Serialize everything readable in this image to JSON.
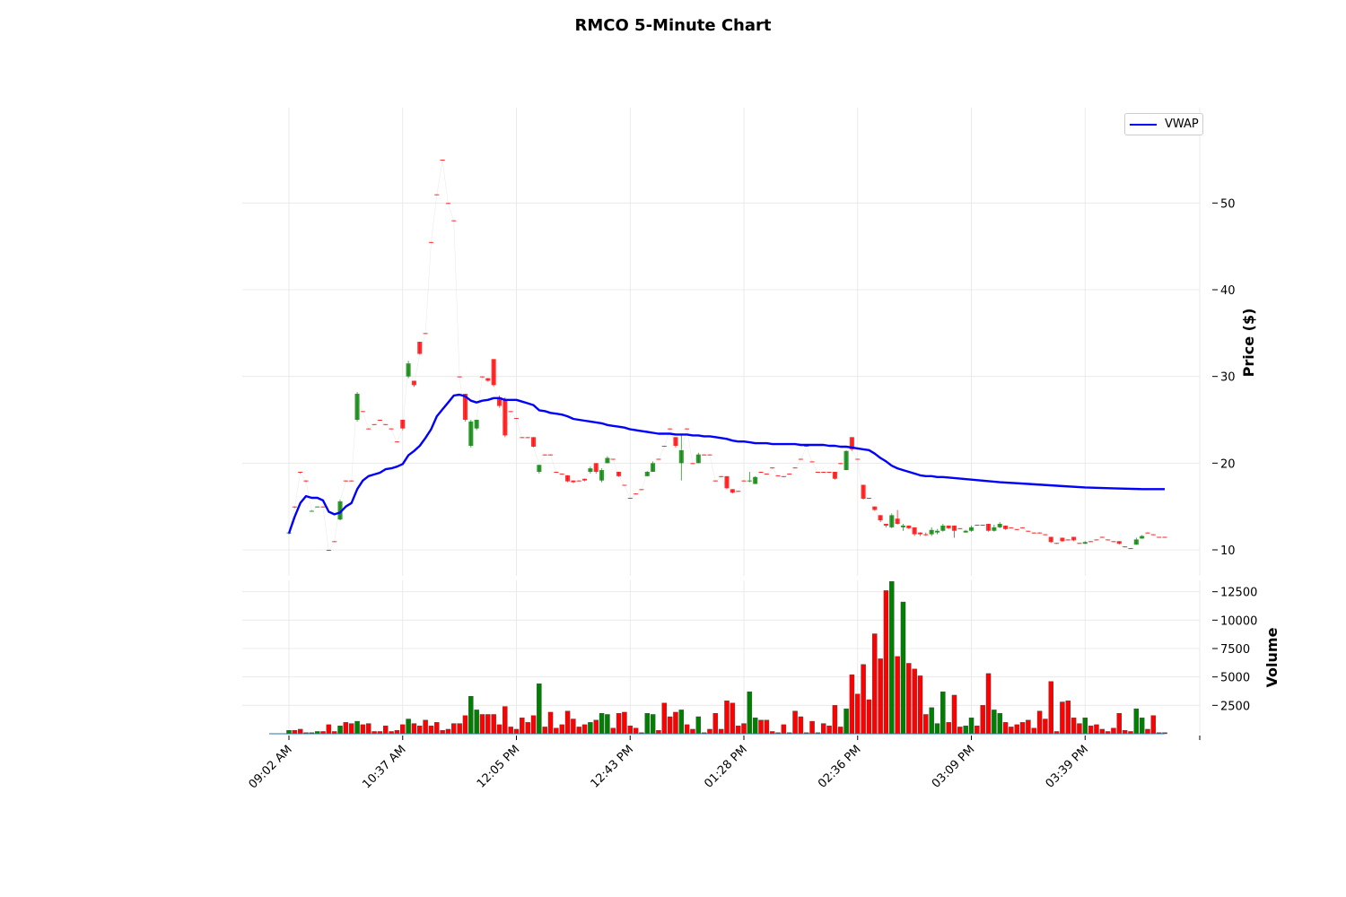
{
  "chart_data": {
    "title": "RMCO 5-Minute Chart",
    "type": "candlestick",
    "price_panel": {
      "ylabel": "Price ($)",
      "yticks": [
        10,
        20,
        30,
        40,
        50
      ],
      "ylim": [
        7,
        61
      ],
      "grid": true
    },
    "volume_panel": {
      "ylabel": "Volume",
      "yticks": [
        2500,
        5000,
        7500,
        10000,
        12500
      ],
      "ylim": [
        0,
        13500
      ],
      "grid": true
    },
    "legend": {
      "position": "top-right",
      "entries": [
        {
          "name": "VWAP",
          "color": "#0000ff"
        }
      ]
    },
    "xticks": [
      {
        "index": 0,
        "label": "09:02 AM"
      },
      {
        "index": 20,
        "label": "10:37 AM"
      },
      {
        "index": 40,
        "label": "12:05 PM"
      },
      {
        "index": 60,
        "label": "12:43 PM"
      },
      {
        "index": 80,
        "label": "01:28 PM"
      },
      {
        "index": 100,
        "label": "02:36 PM"
      },
      {
        "index": 120,
        "label": "03:09 PM"
      },
      {
        "index": 140,
        "label": "03:39 PM"
      }
    ],
    "colors": {
      "up": "#008000",
      "down": "#ff0000",
      "vwap": "#0000ff"
    },
    "candles": [
      [
        12.0,
        12.0,
        11.8,
        12.0,
        300
      ],
      [
        15.0,
        15.0,
        14.8,
        14.9,
        300
      ],
      [
        19.0,
        19.0,
        18.8,
        18.9,
        400
      ],
      [
        18.0,
        18.0,
        17.8,
        17.9,
        100
      ],
      [
        14.5,
        14.6,
        14.4,
        14.5,
        100
      ],
      [
        15.0,
        15.0,
        14.9,
        15.0,
        200
      ],
      [
        15.0,
        15.0,
        14.9,
        14.9,
        200
      ],
      [
        10.0,
        10.0,
        9.9,
        9.9,
        800
      ],
      [
        11.0,
        11.0,
        10.9,
        10.9,
        200
      ],
      [
        13.5,
        15.8,
        13.4,
        15.6,
        700
      ],
      [
        18.0,
        18.0,
        17.9,
        17.9,
        1000
      ],
      [
        18.0,
        18.0,
        17.9,
        17.9,
        900
      ],
      [
        25.0,
        28.2,
        24.8,
        28.0,
        1100
      ],
      [
        26.0,
        26.0,
        25.9,
        25.9,
        800
      ],
      [
        24.0,
        24.0,
        23.9,
        23.9,
        900
      ],
      [
        24.5,
        24.5,
        24.4,
        24.4,
        200
      ],
      [
        25.0,
        25.0,
        24.9,
        24.9,
        200
      ],
      [
        24.5,
        24.5,
        24.4,
        24.4,
        700
      ],
      [
        24.0,
        24.0,
        23.9,
        23.9,
        200
      ],
      [
        22.5,
        22.5,
        22.4,
        22.4,
        300
      ],
      [
        25.0,
        25.0,
        23.8,
        24.0,
        800
      ],
      [
        30.0,
        31.8,
        29.8,
        31.5,
        1300
      ],
      [
        29.5,
        29.5,
        28.8,
        29.0,
        900
      ],
      [
        34.0,
        34.0,
        32.5,
        32.6,
        700
      ],
      [
        35.0,
        35.0,
        34.9,
        34.9,
        1200
      ],
      [
        45.5,
        45.5,
        45.4,
        45.4,
        700
      ],
      [
        51.0,
        51.0,
        50.9,
        50.9,
        1000
      ],
      [
        55.0,
        55.0,
        54.9,
        54.9,
        300
      ],
      [
        50.0,
        50.0,
        49.9,
        49.9,
        400
      ],
      [
        48.0,
        48.0,
        47.9,
        47.9,
        900
      ],
      [
        30.0,
        30.0,
        29.9,
        29.9,
        900
      ],
      [
        28.0,
        28.0,
        24.8,
        25.0,
        1600
      ],
      [
        22.0,
        25.0,
        21.8,
        24.8,
        3300
      ],
      [
        24.0,
        25.0,
        23.8,
        25.0,
        2100
      ],
      [
        30.0,
        30.0,
        29.9,
        29.9,
        1700
      ],
      [
        29.8,
        29.8,
        29.4,
        29.5,
        1700
      ],
      [
        32.0,
        32.0,
        28.8,
        29.0,
        1700
      ],
      [
        27.6,
        27.8,
        26.4,
        26.6,
        800
      ],
      [
        27.4,
        27.6,
        23.0,
        23.2,
        2400
      ],
      [
        26.0,
        26.0,
        25.9,
        25.9,
        600
      ],
      [
        25.2,
        25.2,
        25.1,
        25.1,
        400
      ],
      [
        23.0,
        23.0,
        22.9,
        22.9,
        1400
      ],
      [
        23.0,
        23.0,
        22.9,
        22.9,
        1000
      ],
      [
        23.0,
        23.0,
        21.8,
        21.9,
        1600
      ],
      [
        19.0,
        19.8,
        18.8,
        19.8,
        4400
      ],
      [
        21.0,
        21.0,
        20.9,
        20.9,
        600
      ],
      [
        21.0,
        21.0,
        20.9,
        20.9,
        1900
      ],
      [
        19.0,
        19.0,
        18.9,
        18.9,
        500
      ],
      [
        18.8,
        18.8,
        18.7,
        18.7,
        800
      ],
      [
        18.6,
        18.6,
        17.8,
        17.9,
        2000
      ],
      [
        18.0,
        18.0,
        17.7,
        17.8,
        1300
      ],
      [
        18.0,
        18.0,
        17.9,
        17.9,
        600
      ],
      [
        18.2,
        18.2,
        17.9,
        18.0,
        800
      ],
      [
        19.0,
        19.6,
        18.8,
        19.4,
        1000
      ],
      [
        20.0,
        20.0,
        18.8,
        19.0,
        1200
      ],
      [
        18.0,
        19.4,
        17.8,
        19.2,
        1800
      ],
      [
        20.0,
        20.8,
        20.0,
        20.6,
        1700
      ],
      [
        20.5,
        20.5,
        20.4,
        20.4,
        500
      ],
      [
        19.0,
        19.0,
        18.4,
        18.5,
        1800
      ],
      [
        17.5,
        17.5,
        17.4,
        17.4,
        1900
      ],
      [
        16.0,
        16.0,
        15.9,
        15.9,
        700
      ],
      [
        16.5,
        16.5,
        16.4,
        16.4,
        500
      ],
      [
        17.0,
        17.0,
        16.9,
        16.9,
        100
      ],
      [
        18.5,
        19.1,
        18.5,
        19.0,
        1800
      ],
      [
        19.0,
        20.2,
        19.0,
        20.0,
        1700
      ],
      [
        20.5,
        20.5,
        20.4,
        20.4,
        300
      ],
      [
        22.0,
        22.0,
        21.9,
        21.9,
        2700
      ],
      [
        24.0,
        24.0,
        23.9,
        23.9,
        1500
      ],
      [
        23.0,
        23.0,
        21.8,
        22.0,
        1900
      ],
      [
        20.0,
        23.2,
        18.0,
        21.5,
        2100
      ],
      [
        24.0,
        24.0,
        23.9,
        23.9,
        800
      ],
      [
        20.0,
        20.0,
        19.9,
        19.9,
        400
      ],
      [
        20.0,
        21.2,
        20.0,
        21.0,
        1500
      ],
      [
        21.0,
        21.0,
        20.9,
        20.9,
        100
      ],
      [
        21.0,
        21.0,
        20.9,
        20.9,
        400
      ],
      [
        18.0,
        18.0,
        17.9,
        17.9,
        1800
      ],
      [
        18.5,
        18.5,
        18.4,
        18.4,
        400
      ],
      [
        18.5,
        18.5,
        17.0,
        17.1,
        2900
      ],
      [
        17.0,
        17.0,
        16.5,
        16.6,
        2700
      ],
      [
        16.8,
        16.8,
        16.7,
        16.7,
        700
      ],
      [
        18.0,
        18.0,
        17.9,
        17.9,
        900
      ],
      [
        18.0,
        19.0,
        17.8,
        18.0,
        3700
      ],
      [
        17.6,
        18.5,
        17.6,
        18.4,
        1400
      ],
      [
        19.0,
        19.0,
        18.9,
        18.9,
        1200
      ],
      [
        18.8,
        18.8,
        18.7,
        18.7,
        1200
      ],
      [
        19.5,
        19.5,
        19.4,
        19.4,
        200
      ],
      [
        18.6,
        18.6,
        18.5,
        18.5,
        100
      ],
      [
        18.5,
        18.5,
        18.4,
        18.4,
        800
      ],
      [
        18.8,
        18.8,
        18.7,
        18.7,
        100
      ],
      [
        19.5,
        19.5,
        19.4,
        19.4,
        2000
      ],
      [
        20.5,
        20.5,
        20.4,
        20.4,
        1500
      ],
      [
        22.0,
        22.0,
        21.9,
        21.9,
        100
      ],
      [
        20.2,
        20.2,
        20.1,
        20.1,
        1100
      ],
      [
        19.0,
        19.0,
        18.9,
        18.9,
        100
      ],
      [
        19.0,
        19.0,
        18.9,
        18.9,
        900
      ],
      [
        19.0,
        19.0,
        18.9,
        18.9,
        700
      ],
      [
        19.0,
        19.0,
        18.1,
        18.2,
        2500
      ],
      [
        20.0,
        20.0,
        19.9,
        19.9,
        600
      ],
      [
        19.2,
        21.5,
        19.2,
        21.4,
        2200
      ],
      [
        23.0,
        23.0,
        21.4,
        21.6,
        5200
      ],
      [
        20.5,
        20.5,
        20.4,
        20.4,
        3500
      ],
      [
        17.5,
        17.5,
        15.8,
        15.9,
        6100
      ],
      [
        16.0,
        16.0,
        15.9,
        15.9,
        3000
      ],
      [
        15.0,
        15.0,
        14.5,
        14.6,
        8800
      ],
      [
        14.0,
        14.0,
        13.2,
        13.4,
        6600
      ],
      [
        13.0,
        13.0,
        12.6,
        12.8,
        12600
      ],
      [
        12.6,
        14.2,
        12.5,
        14.0,
        13400
      ],
      [
        13.6,
        14.6,
        12.9,
        13.0,
        6800
      ],
      [
        12.6,
        13.0,
        12.2,
        12.8,
        11600
      ],
      [
        12.8,
        12.8,
        12.4,
        12.5,
        6200
      ],
      [
        12.6,
        12.6,
        11.6,
        11.8,
        5700
      ],
      [
        12.0,
        12.0,
        11.6,
        11.8,
        5100
      ],
      [
        11.8,
        12.0,
        11.6,
        11.7,
        1700
      ],
      [
        11.8,
        12.6,
        11.6,
        12.3,
        2300
      ],
      [
        12.0,
        12.4,
        11.8,
        12.2,
        900
      ],
      [
        12.2,
        13.0,
        12.1,
        12.8,
        3700
      ],
      [
        12.8,
        12.8,
        12.4,
        12.5,
        1000
      ],
      [
        12.8,
        12.8,
        11.4,
        12.2,
        3400
      ],
      [
        12.5,
        12.5,
        12.4,
        12.4,
        600
      ],
      [
        12.0,
        12.3,
        12.0,
        12.2,
        700
      ],
      [
        12.2,
        12.8,
        12.1,
        12.6,
        1400
      ],
      [
        12.9,
        12.9,
        12.8,
        12.8,
        700
      ],
      [
        12.9,
        12.9,
        12.8,
        12.8,
        2500
      ],
      [
        13.0,
        13.0,
        12.1,
        12.2,
        5300
      ],
      [
        12.2,
        12.9,
        12.1,
        12.6,
        2100
      ],
      [
        12.6,
        13.2,
        12.5,
        13.0,
        1800
      ],
      [
        12.8,
        12.8,
        12.3,
        12.4,
        1000
      ],
      [
        12.6,
        12.6,
        12.5,
        12.5,
        600
      ],
      [
        12.4,
        12.4,
        12.3,
        12.3,
        800
      ],
      [
        12.6,
        12.6,
        12.5,
        12.5,
        1000
      ],
      [
        12.2,
        12.2,
        12.1,
        12.1,
        1200
      ],
      [
        12.0,
        12.0,
        11.9,
        11.9,
        500
      ],
      [
        12.0,
        12.0,
        11.9,
        11.9,
        2000
      ],
      [
        11.8,
        11.8,
        11.7,
        11.7,
        1300
      ],
      [
        11.5,
        11.5,
        10.8,
        10.9,
        4600
      ],
      [
        10.8,
        10.8,
        10.7,
        10.7,
        200
      ],
      [
        11.4,
        11.4,
        10.9,
        11.0,
        2800
      ],
      [
        11.2,
        11.2,
        11.1,
        11.1,
        2900
      ],
      [
        11.5,
        11.5,
        11.0,
        11.1,
        1400
      ],
      [
        10.8,
        10.8,
        10.7,
        10.7,
        900
      ],
      [
        10.7,
        11.0,
        10.7,
        10.9,
        1400
      ],
      [
        11.0,
        11.0,
        10.9,
        10.9,
        700
      ],
      [
        11.2,
        11.2,
        11.1,
        11.1,
        800
      ],
      [
        11.5,
        11.5,
        11.4,
        11.4,
        400
      ],
      [
        11.2,
        11.2,
        11.1,
        11.1,
        200
      ],
      [
        11.0,
        11.0,
        10.9,
        10.9,
        500
      ],
      [
        11.0,
        11.0,
        10.6,
        10.7,
        1800
      ],
      [
        10.4,
        10.4,
        10.3,
        10.3,
        300
      ],
      [
        10.2,
        10.2,
        10.1,
        10.1,
        200
      ],
      [
        10.6,
        11.4,
        10.6,
        11.2,
        2200
      ],
      [
        11.3,
        11.7,
        11.3,
        11.6,
        1400
      ],
      [
        12.0,
        12.0,
        11.9,
        11.9,
        400
      ],
      [
        11.8,
        11.8,
        11.7,
        11.7,
        1600
      ],
      [
        11.5,
        11.5,
        11.4,
        11.4,
        100
      ],
      [
        11.5,
        11.5,
        11.4,
        11.4,
        100
      ]
    ],
    "vwap": [
      [
        0,
        11.9
      ],
      [
        1,
        13.8
      ],
      [
        2,
        15.4
      ],
      [
        3,
        16.2
      ],
      [
        4,
        16.0
      ],
      [
        5,
        16.0
      ],
      [
        6,
        15.7
      ],
      [
        7,
        14.4
      ],
      [
        8,
        14.1
      ],
      [
        9,
        14.3
      ],
      [
        10,
        15.0
      ],
      [
        11,
        15.4
      ],
      [
        12,
        17.0
      ],
      [
        13,
        18.0
      ],
      [
        14,
        18.5
      ],
      [
        15,
        18.7
      ],
      [
        16,
        18.9
      ],
      [
        17,
        19.3
      ],
      [
        18,
        19.4
      ],
      [
        19,
        19.6
      ],
      [
        20,
        19.9
      ],
      [
        21,
        20.9
      ],
      [
        22,
        21.4
      ],
      [
        23,
        22.0
      ],
      [
        24,
        22.9
      ],
      [
        25,
        23.9
      ],
      [
        26,
        25.4
      ],
      [
        27,
        26.2
      ],
      [
        28,
        27.0
      ],
      [
        29,
        27.8
      ],
      [
        30,
        27.9
      ],
      [
        31,
        27.7
      ],
      [
        32,
        27.2
      ],
      [
        33,
        27.0
      ],
      [
        34,
        27.2
      ],
      [
        35,
        27.3
      ],
      [
        36,
        27.5
      ],
      [
        37,
        27.5
      ],
      [
        38,
        27.3
      ],
      [
        39,
        27.3
      ],
      [
        40,
        27.3
      ],
      [
        41,
        27.1
      ],
      [
        42,
        26.9
      ],
      [
        43,
        26.7
      ],
      [
        44,
        26.1
      ],
      [
        45,
        26.0
      ],
      [
        46,
        25.8
      ],
      [
        47,
        25.7
      ],
      [
        48,
        25.6
      ],
      [
        49,
        25.4
      ],
      [
        50,
        25.1
      ],
      [
        51,
        25.0
      ],
      [
        52,
        24.9
      ],
      [
        53,
        24.8
      ],
      [
        54,
        24.7
      ],
      [
        55,
        24.6
      ],
      [
        56,
        24.4
      ],
      [
        57,
        24.3
      ],
      [
        58,
        24.2
      ],
      [
        59,
        24.1
      ],
      [
        60,
        23.9
      ],
      [
        61,
        23.8
      ],
      [
        62,
        23.7
      ],
      [
        63,
        23.6
      ],
      [
        64,
        23.5
      ],
      [
        65,
        23.4
      ],
      [
        66,
        23.4
      ],
      [
        67,
        23.4
      ],
      [
        68,
        23.3
      ],
      [
        69,
        23.3
      ],
      [
        70,
        23.3
      ],
      [
        71,
        23.2
      ],
      [
        72,
        23.2
      ],
      [
        73,
        23.1
      ],
      [
        74,
        23.1
      ],
      [
        75,
        23.0
      ],
      [
        76,
        22.9
      ],
      [
        77,
        22.8
      ],
      [
        78,
        22.6
      ],
      [
        79,
        22.5
      ],
      [
        80,
        22.5
      ],
      [
        81,
        22.4
      ],
      [
        82,
        22.3
      ],
      [
        83,
        22.3
      ],
      [
        84,
        22.3
      ],
      [
        85,
        22.2
      ],
      [
        86,
        22.2
      ],
      [
        87,
        22.2
      ],
      [
        88,
        22.2
      ],
      [
        89,
        22.2
      ],
      [
        90,
        22.1
      ],
      [
        91,
        22.1
      ],
      [
        92,
        22.1
      ],
      [
        93,
        22.1
      ],
      [
        94,
        22.1
      ],
      [
        95,
        22.0
      ],
      [
        96,
        22.0
      ],
      [
        97,
        21.9
      ],
      [
        98,
        21.9
      ],
      [
        99,
        21.8
      ],
      [
        100,
        21.7
      ],
      [
        101,
        21.6
      ],
      [
        102,
        21.5
      ],
      [
        103,
        21.1
      ],
      [
        104,
        20.6
      ],
      [
        105,
        20.2
      ],
      [
        106,
        19.7
      ],
      [
        107,
        19.4
      ],
      [
        108,
        19.2
      ],
      [
        109,
        19.0
      ],
      [
        110,
        18.8
      ],
      [
        111,
        18.6
      ],
      [
        112,
        18.5
      ],
      [
        113,
        18.5
      ],
      [
        114,
        18.4
      ],
      [
        115,
        18.4
      ],
      [
        120,
        18.1
      ],
      [
        125,
        17.8
      ],
      [
        130,
        17.6
      ],
      [
        135,
        17.4
      ],
      [
        140,
        17.2
      ],
      [
        145,
        17.1
      ],
      [
        150,
        17.0
      ],
      [
        154,
        17.0
      ]
    ]
  }
}
